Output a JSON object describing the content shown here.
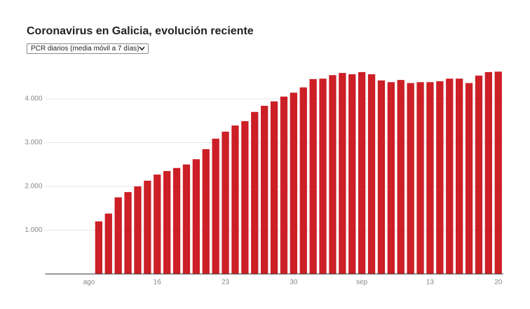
{
  "chart_data": {
    "type": "bar",
    "title": "Coronavirus en Galicia, evolución reciente",
    "dropdown": "PCR diarios (media móvil a 7 días)",
    "categories": [
      null,
      null,
      null,
      null,
      "ago",
      null,
      null,
      null,
      null,
      null,
      null,
      "16",
      null,
      null,
      null,
      null,
      null,
      null,
      "23",
      null,
      null,
      null,
      null,
      null,
      null,
      "30",
      null,
      null,
      null,
      null,
      null,
      null,
      "sep",
      null,
      null,
      null,
      null,
      null,
      null,
      "13",
      null,
      null,
      null,
      null,
      null,
      null,
      "20"
    ],
    "values": [
      null,
      null,
      null,
      null,
      null,
      1200,
      1380,
      1750,
      1870,
      2000,
      2130,
      2270,
      2350,
      2420,
      2500,
      2620,
      2850,
      3090,
      3250,
      3390,
      3490,
      3700,
      3840,
      3940,
      4050,
      4140,
      4260,
      4450,
      4460,
      4540,
      4590,
      4560,
      4610,
      4560,
      4420,
      4380,
      4430,
      4360,
      4380,
      4380,
      4400,
      4460,
      4460,
      4360,
      4530,
      4610,
      4620
    ],
    "color": "#cc1f26",
    "ylim": [
      0,
      5000
    ],
    "yticks": [
      {
        "value": 1000,
        "label": "1.000"
      },
      {
        "value": 2000,
        "label": "2.000"
      },
      {
        "value": 3000,
        "label": "3.000"
      },
      {
        "value": 4000,
        "label": "4.000"
      }
    ],
    "grid": true
  }
}
